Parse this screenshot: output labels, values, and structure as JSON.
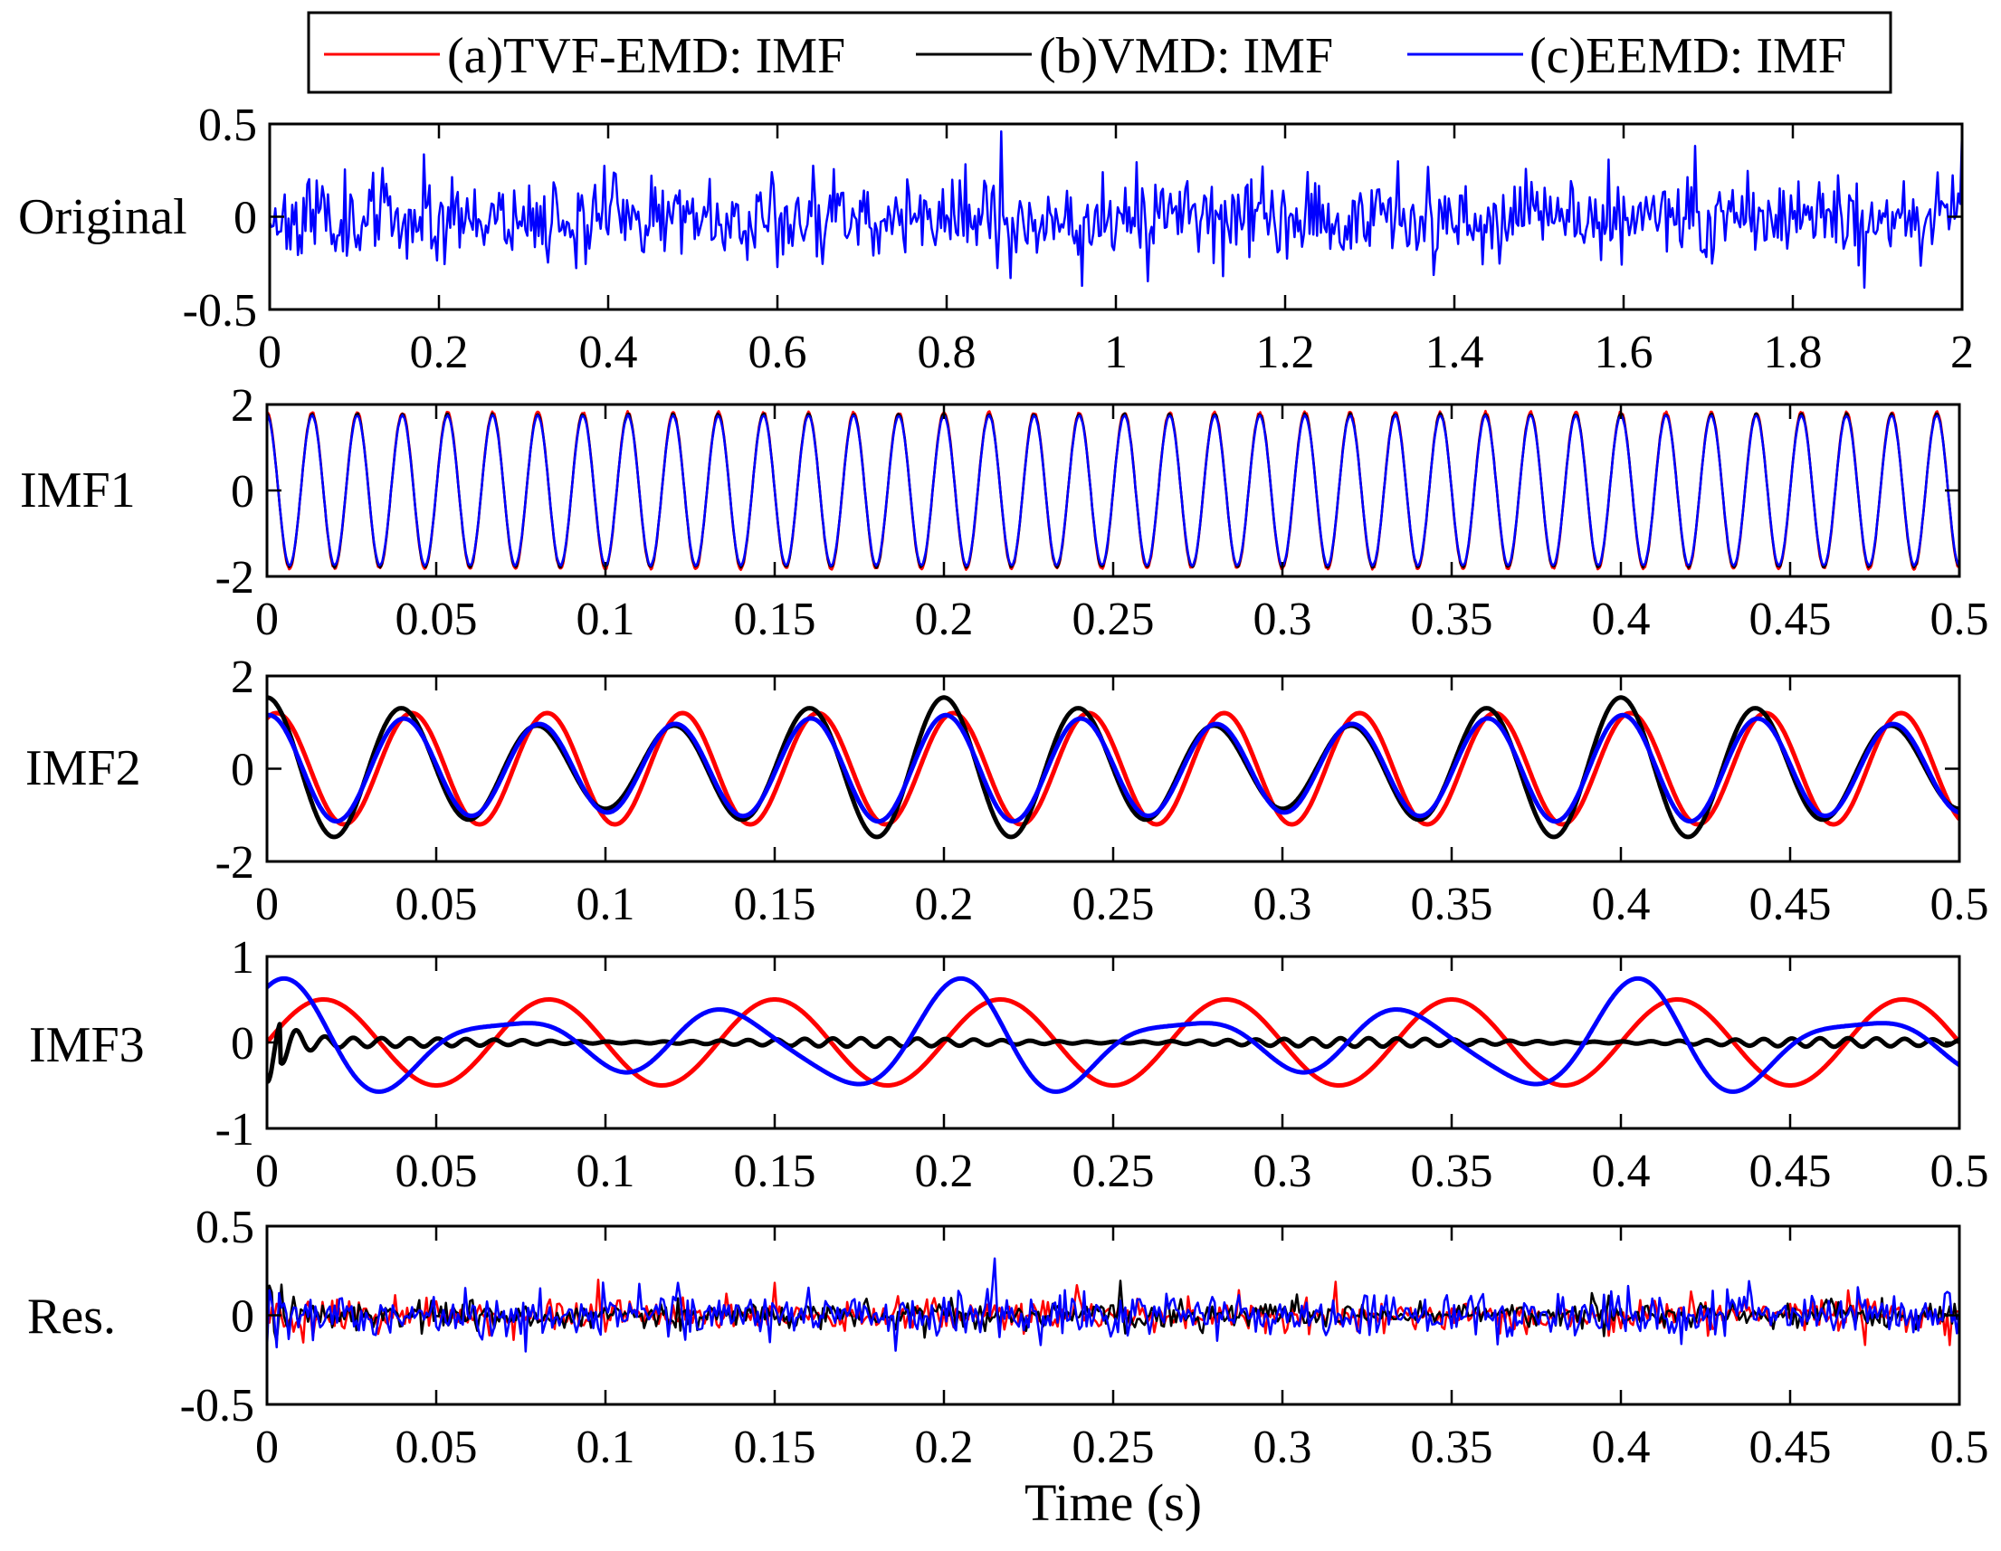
{
  "colors": {
    "tvf": "#ff0000",
    "vmd": "#000000",
    "eemd": "#0000ff",
    "axis": "#000000"
  },
  "legend": [
    {
      "label": "(a)TVF-EMD: IMF",
      "series": "tvf"
    },
    {
      "label": "(b)VMD: IMF",
      "series": "vmd"
    },
    {
      "label": "(c)EEMD: IMF",
      "series": "eemd"
    }
  ],
  "chart_data": [
    {
      "type": "line",
      "name": "original",
      "ylabel": "Original",
      "xlim": [
        0,
        2
      ],
      "ylim": [
        -0.5,
        0.5
      ],
      "xticks": [
        "0",
        "0.2",
        "0.4",
        "0.6",
        "0.8",
        "1",
        "1.2",
        "1.4",
        "1.6",
        "1.8",
        "2"
      ],
      "yticks": [
        "-0.5",
        "0",
        "0.5"
      ],
      "series": [
        {
          "name": "eemd",
          "kind": "noise",
          "amplitude": 0.11,
          "seed": 11,
          "samples": 900
        }
      ]
    },
    {
      "type": "line",
      "name": "imf1",
      "ylabel": "IMF1",
      "xlim": [
        0,
        0.5
      ],
      "ylim": [
        -2,
        2
      ],
      "xticks": [
        "0",
        "0.05",
        "0.1",
        "0.15",
        "0.2",
        "0.25",
        "0.3",
        "0.35",
        "0.4",
        "0.45",
        "0.5"
      ],
      "yticks": [
        "-2",
        "0",
        "2"
      ],
      "series": [
        {
          "name": "tvf",
          "kind": "sine",
          "amplitude": 1.82,
          "frequency": 75,
          "phase_deg": 90,
          "jitter": 0.06,
          "seed": 3
        },
        {
          "name": "vmd",
          "kind": "sine",
          "amplitude": 1.78,
          "frequency": 75,
          "phase_deg": 90,
          "jitter": 0.04,
          "seed": 5
        },
        {
          "name": "eemd",
          "kind": "sine",
          "amplitude": 1.74,
          "frequency": 75,
          "phase_deg": 90,
          "jitter": 0.03,
          "seed": 7
        }
      ]
    },
    {
      "type": "line",
      "name": "imf2",
      "ylabel": "IMF2",
      "xlim": [
        0,
        0.5
      ],
      "ylim": [
        -2,
        2
      ],
      "xticks": [
        "0",
        "0.05",
        "0.1",
        "0.15",
        "0.2",
        "0.25",
        "0.3",
        "0.35",
        "0.4",
        "0.45",
        "0.5"
      ],
      "yticks": [
        "-2",
        "0",
        "2"
      ],
      "series": [
        {
          "name": "tvf",
          "kind": "sine",
          "amplitude": 1.2,
          "frequency": 25,
          "phase_deg": 65,
          "beat": 0.0,
          "width": 5
        },
        {
          "name": "vmd",
          "kind": "sine",
          "amplitude": 1.2,
          "frequency": 25,
          "phase_deg": 90,
          "beat": 0.28,
          "beat_frequency": 5,
          "width": 5
        },
        {
          "name": "eemd",
          "kind": "sine",
          "amplitude": 1.05,
          "frequency": 25,
          "phase_deg": 85,
          "beat": 0.1,
          "beat_frequency": 5,
          "width": 5
        }
      ]
    },
    {
      "type": "line",
      "name": "imf3",
      "ylabel": "IMF3",
      "xlim": [
        0,
        0.5
      ],
      "ylim": [
        -1,
        1
      ],
      "xticks": [
        "0",
        "0.05",
        "0.1",
        "0.15",
        "0.2",
        "0.25",
        "0.3",
        "0.35",
        "0.4",
        "0.45",
        "0.5"
      ],
      "yticks": [
        "-1",
        "0",
        "1"
      ],
      "series": [
        {
          "name": "tvf",
          "kind": "sine",
          "amplitude": 0.5,
          "frequency": 15,
          "phase_deg": 0,
          "width": 5
        },
        {
          "name": "vmd",
          "kind": "decay",
          "amplitude": 0.05,
          "frequency": 120,
          "width": 5
        },
        {
          "name": "eemd",
          "kind": "modsine",
          "amplitude": 0.62,
          "frequency": 15,
          "width": 5
        }
      ]
    },
    {
      "type": "line",
      "name": "residual",
      "ylabel": "Res.",
      "xlim": [
        0,
        0.5
      ],
      "ylim": [
        -0.5,
        0.5
      ],
      "xticks": [
        "0",
        "0.05",
        "0.1",
        "0.15",
        "0.2",
        "0.25",
        "0.3",
        "0.35",
        "0.4",
        "0.45",
        "0.5"
      ],
      "yticks": [
        "-0.5",
        "0",
        "0.5"
      ],
      "xlabel": "Time (s)",
      "series": [
        {
          "name": "tvf",
          "kind": "noise",
          "amplitude": 0.045,
          "seed": 21,
          "samples": 700
        },
        {
          "name": "vmd",
          "kind": "noise",
          "amplitude": 0.035,
          "seed": 33,
          "samples": 700,
          "spike": 0.2
        },
        {
          "name": "eemd",
          "kind": "noise",
          "amplitude": 0.06,
          "seed": 47,
          "samples": 700,
          "spike": 0.18
        }
      ]
    }
  ]
}
